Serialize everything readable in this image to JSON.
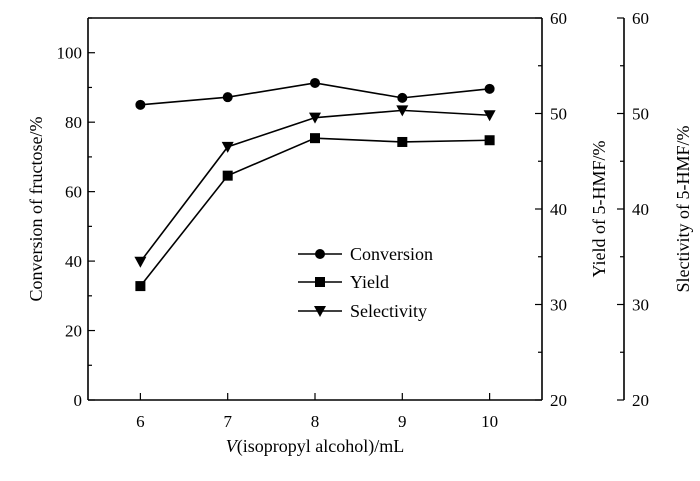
{
  "chart_data": {
    "type": "line",
    "xlabel_italic": "V",
    "xlabel_rest": "(isopropyl alcohol)/mL",
    "x": [
      6,
      7,
      8,
      9,
      10
    ],
    "xlim": [
      5.4,
      10.6
    ],
    "x_ticks": [
      "6",
      "7",
      "8",
      "9",
      "10"
    ],
    "axes": [
      {
        "id": "left",
        "label": "Conversion of fructose/%",
        "ylim": [
          0,
          110
        ],
        "ticks": [
          "0",
          "20",
          "40",
          "60",
          "80",
          "100"
        ]
      },
      {
        "id": "right1",
        "label": "Yield of 5-HMF/%",
        "ylim": [
          20,
          60
        ],
        "ticks": [
          "20",
          "30",
          "40",
          "50",
          "60"
        ]
      },
      {
        "id": "right2",
        "label": "Slectivity of 5-HMF/%",
        "ylim": [
          20,
          60
        ],
        "ticks": [
          "20",
          "30",
          "40",
          "50",
          "60"
        ]
      }
    ],
    "series": [
      {
        "name": "Conversion",
        "marker": "circle",
        "axis": "left",
        "values": [
          85.0,
          87.2,
          91.3,
          87.0,
          89.6
        ]
      },
      {
        "name": "Yield",
        "marker": "square",
        "axis": "left",
        "values": [
          32.8,
          64.6,
          75.4,
          74.3,
          74.8
        ]
      },
      {
        "name": "Selectivity",
        "marker": "triangle-down",
        "axis": "left",
        "values": [
          39.8,
          72.9,
          81.3,
          83.4,
          82.0
        ]
      }
    ],
    "legend": {
      "position": "center-right",
      "items": [
        "Conversion",
        "Yield",
        "Selectivity"
      ]
    },
    "grid": false
  }
}
